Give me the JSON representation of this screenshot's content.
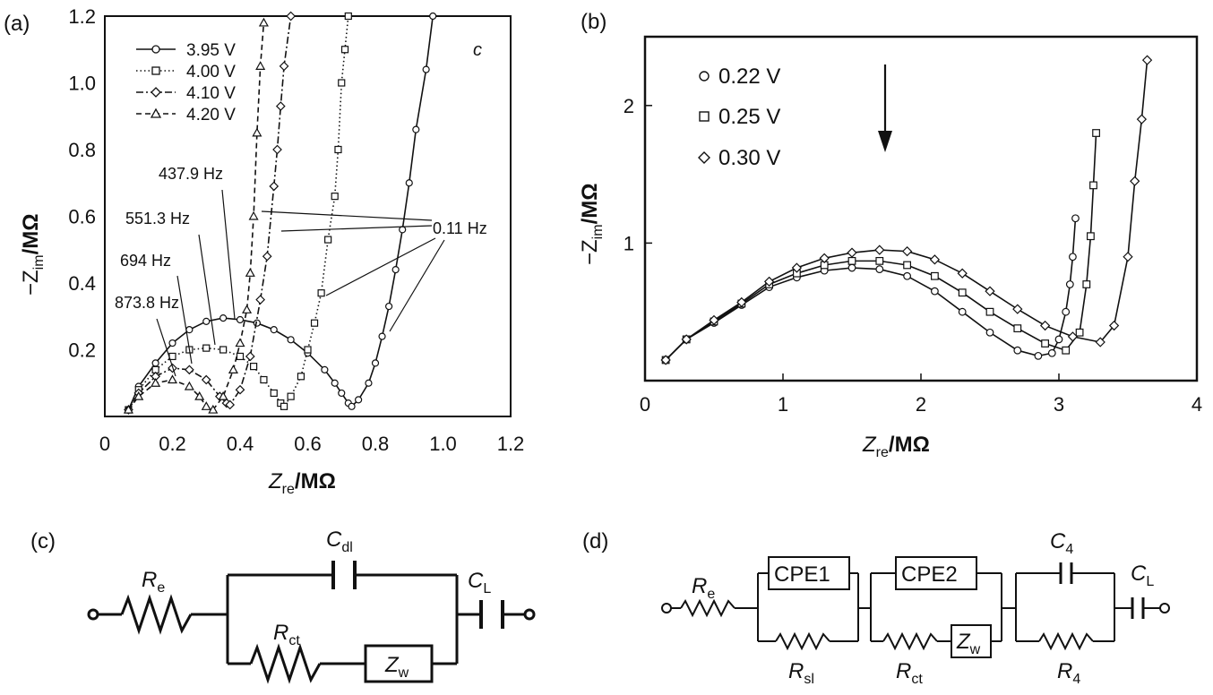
{
  "chart_data": [
    {
      "panel_label": "(a)",
      "type": "line",
      "corner_label": "c",
      "xlabel_main": "Z",
      "xlabel_sub": "re",
      "xlabel_unit": "/MΩ",
      "ylabel_main": "−Z",
      "ylabel_sub": "im",
      "ylabel_unit": "/MΩ",
      "xlim": [
        0,
        1.2
      ],
      "ylim": [
        0,
        1.2
      ],
      "xticks": [
        "0",
        "0.2",
        "0.4",
        "0.6",
        "0.8",
        "1.0",
        "1.2"
      ],
      "yticks": [
        "0.2",
        "0.4",
        "0.6",
        "0.8",
        "1.0",
        "1.2"
      ],
      "legend_position": "top-left",
      "series": [
        {
          "name": "3.95 V",
          "marker": "circle",
          "dash": "solid",
          "x": [
            0.07,
            0.1,
            0.15,
            0.2,
            0.25,
            0.3,
            0.35,
            0.4,
            0.45,
            0.5,
            0.55,
            0.6,
            0.65,
            0.68,
            0.7,
            0.72,
            0.73,
            0.75,
            0.78,
            0.8,
            0.82,
            0.84,
            0.86,
            0.88,
            0.9,
            0.92,
            0.95,
            0.97
          ],
          "y": [
            0.02,
            0.09,
            0.16,
            0.22,
            0.26,
            0.285,
            0.295,
            0.29,
            0.28,
            0.26,
            0.23,
            0.19,
            0.14,
            0.1,
            0.07,
            0.04,
            0.03,
            0.05,
            0.1,
            0.16,
            0.24,
            0.33,
            0.44,
            0.56,
            0.7,
            0.86,
            1.04,
            1.2
          ]
        },
        {
          "name": "4.00 V",
          "marker": "square",
          "dash": "dotted",
          "x": [
            0.07,
            0.1,
            0.15,
            0.2,
            0.25,
            0.3,
            0.35,
            0.4,
            0.44,
            0.47,
            0.5,
            0.52,
            0.53,
            0.55,
            0.58,
            0.6,
            0.62,
            0.64,
            0.66,
            0.68,
            0.69,
            0.7,
            0.71,
            0.72
          ],
          "y": [
            0.02,
            0.08,
            0.14,
            0.18,
            0.2,
            0.205,
            0.2,
            0.18,
            0.15,
            0.11,
            0.07,
            0.04,
            0.03,
            0.06,
            0.12,
            0.2,
            0.28,
            0.37,
            0.53,
            0.66,
            0.8,
            1.0,
            1.1,
            1.2
          ]
        },
        {
          "name": "4.10 V",
          "marker": "diamond",
          "dash": "dashdot",
          "x": [
            0.07,
            0.1,
            0.15,
            0.2,
            0.25,
            0.3,
            0.34,
            0.36,
            0.37,
            0.4,
            0.43,
            0.46,
            0.48,
            0.5,
            0.51,
            0.52,
            0.53,
            0.55
          ],
          "y": [
            0.02,
            0.07,
            0.12,
            0.145,
            0.14,
            0.11,
            0.06,
            0.04,
            0.035,
            0.08,
            0.18,
            0.35,
            0.48,
            0.69,
            0.8,
            0.93,
            1.05,
            1.2
          ]
        },
        {
          "name": "4.20 V",
          "marker": "triangle",
          "dash": "dashed",
          "x": [
            0.07,
            0.1,
            0.15,
            0.2,
            0.25,
            0.28,
            0.3,
            0.32,
            0.35,
            0.38,
            0.4,
            0.42,
            0.43,
            0.44,
            0.45,
            0.46,
            0.47
          ],
          "y": [
            0.02,
            0.06,
            0.1,
            0.11,
            0.09,
            0.06,
            0.03,
            0.02,
            0.06,
            0.14,
            0.22,
            0.32,
            0.43,
            0.6,
            0.85,
            1.05,
            1.18
          ]
        }
      ],
      "annotations": [
        {
          "text": "437.9 Hz"
        },
        {
          "text": "551.3 Hz"
        },
        {
          "text": "694 Hz"
        },
        {
          "text": "873.8 Hz"
        },
        {
          "text": "0.11 Hz"
        }
      ]
    },
    {
      "panel_label": "(b)",
      "type": "line",
      "xlabel_main": "Z",
      "xlabel_sub": "re",
      "xlabel_unit": "/MΩ",
      "ylabel_main": "−Z",
      "ylabel_sub": "im",
      "ylabel_unit": "/MΩ",
      "xlim": [
        0,
        4
      ],
      "ylim": [
        0,
        2.5
      ],
      "xticks": [
        "0",
        "1",
        "2",
        "3",
        "4"
      ],
      "yticks": [
        "1",
        "2"
      ],
      "legend_position": "top-left",
      "series": [
        {
          "name": "0.22 V",
          "marker": "circle",
          "x": [
            0.15,
            0.3,
            0.5,
            0.7,
            0.9,
            1.1,
            1.3,
            1.5,
            1.7,
            1.9,
            2.1,
            2.3,
            2.5,
            2.7,
            2.85,
            2.95,
            3.0,
            3.05,
            3.08,
            3.1,
            3.12
          ],
          "y": [
            0.15,
            0.3,
            0.42,
            0.55,
            0.68,
            0.75,
            0.8,
            0.82,
            0.81,
            0.76,
            0.65,
            0.5,
            0.35,
            0.22,
            0.18,
            0.2,
            0.3,
            0.5,
            0.7,
            0.9,
            1.18
          ]
        },
        {
          "name": "0.25 V",
          "marker": "square",
          "x": [
            0.15,
            0.3,
            0.5,
            0.7,
            0.9,
            1.1,
            1.3,
            1.5,
            1.7,
            1.9,
            2.1,
            2.3,
            2.5,
            2.7,
            2.9,
            3.05,
            3.15,
            3.2,
            3.23,
            3.25,
            3.27
          ],
          "y": [
            0.15,
            0.3,
            0.43,
            0.56,
            0.7,
            0.78,
            0.84,
            0.87,
            0.87,
            0.84,
            0.76,
            0.64,
            0.5,
            0.38,
            0.27,
            0.22,
            0.35,
            0.7,
            1.05,
            1.42,
            1.8
          ]
        },
        {
          "name": "0.30 V",
          "marker": "diamond",
          "x": [
            0.15,
            0.3,
            0.5,
            0.7,
            0.9,
            1.1,
            1.3,
            1.5,
            1.7,
            1.9,
            2.1,
            2.3,
            2.5,
            2.7,
            2.9,
            3.1,
            3.3,
            3.4,
            3.5,
            3.55,
            3.6,
            3.64
          ],
          "y": [
            0.15,
            0.3,
            0.44,
            0.57,
            0.72,
            0.82,
            0.89,
            0.93,
            0.95,
            0.94,
            0.88,
            0.78,
            0.65,
            0.52,
            0.4,
            0.32,
            0.28,
            0.4,
            0.9,
            1.45,
            1.9,
            2.33
          ]
        }
      ]
    }
  ],
  "circuits": {
    "c": {
      "panel_label": "(c)",
      "labels": {
        "Re_main": "R",
        "Re_sub": "e",
        "Cdl_main": "C",
        "Cdl_sub": "dl",
        "CL_main": "C",
        "CL_sub": "L",
        "Rct_main": "R",
        "Rct_sub": "ct",
        "Zw_main": "Z",
        "Zw_sub": "w"
      }
    },
    "d": {
      "panel_label": "(d)",
      "labels": {
        "Re_main": "R",
        "Re_sub": "e",
        "CPE1": "CPE1",
        "CPE2": "CPE2",
        "C4_main": "C",
        "C4_sub": "4",
        "CL_main": "C",
        "CL_sub": "L",
        "Rsl_main": "R",
        "Rsl_sub": "sl",
        "Rct_main": "R",
        "Rct_sub": "ct",
        "Zw_main": "Z",
        "Zw_sub": "w",
        "R4_main": "R",
        "R4_sub": "4"
      }
    }
  }
}
